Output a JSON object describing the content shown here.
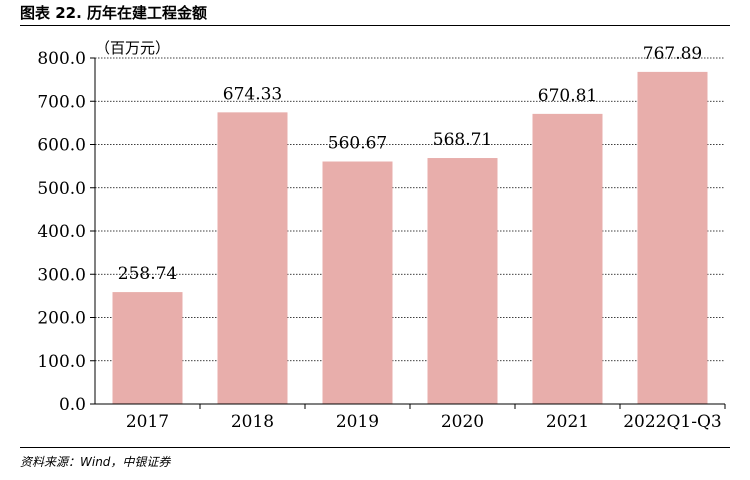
{
  "header": {
    "title": "图表 22. 历年在建工程金额"
  },
  "footer": {
    "source": "资料来源：Wind，中银证券"
  },
  "chart_data": {
    "type": "bar",
    "unit_label": "（百万元）",
    "categories": [
      "2017",
      "2018",
      "2019",
      "2020",
      "2021",
      "2022Q1-Q3"
    ],
    "values": [
      258.74,
      674.33,
      560.67,
      568.71,
      670.81,
      767.89
    ],
    "value_labels": [
      "258.74",
      "674.33",
      "560.67",
      "568.71",
      "670.81",
      "767.89"
    ],
    "ylim": [
      0,
      800
    ],
    "yticks": [
      "0.0",
      "100.0",
      "200.0",
      "300.0",
      "400.0",
      "500.0",
      "600.0",
      "700.0",
      "800.0"
    ],
    "grid": true,
    "bar_color": "#e8aeab"
  }
}
